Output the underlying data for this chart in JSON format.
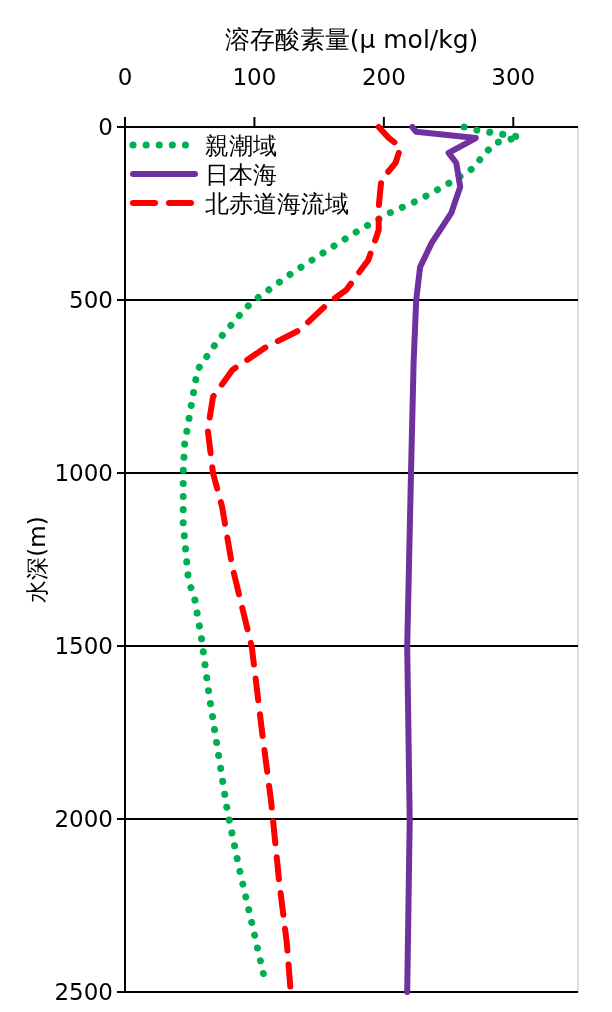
{
  "chart_data": {
    "type": "line",
    "xlabel": "溶存酸素量(μ mol/kg)",
    "ylabel": "水深(m)",
    "xlim": [
      0,
      350
    ],
    "xticks": [
      0,
      100,
      200,
      300
    ],
    "ylim": [
      2500,
      0
    ],
    "yticks": [
      0,
      500,
      1000,
      1500,
      2000,
      2500
    ],
    "grid": "y",
    "legend": "top left",
    "series": [
      {
        "name": "親潮域",
        "color": "#00b050",
        "line_style": "dotted",
        "x": [
          262,
          273,
          305,
          286,
          277,
          269,
          248,
          227,
          204,
          181,
          160,
          129,
          98,
          90,
          72,
          56,
          51,
          46,
          45,
          45,
          49,
          54,
          59,
          65,
          72,
          79,
          88,
          98,
          108
        ],
        "values": [
          0,
          10,
          29,
          46,
          81,
          119,
          168,
          211,
          249,
          298,
          347,
          422,
          506,
          538,
          616,
          702,
          809,
          919,
          1000,
          1145,
          1309,
          1367,
          1477,
          1642,
          1809,
          1974,
          2139,
          2301,
          2465
        ]
      },
      {
        "name": "日本海",
        "color": "#7030a0",
        "line_style": "solid",
        "x": [
          222,
          225,
          271,
          250,
          256,
          259,
          252,
          237,
          228,
          225,
          223,
          221,
          218,
          220,
          218
        ],
        "values": [
          0,
          14,
          32,
          75,
          104,
          173,
          249,
          335,
          405,
          500,
          682,
          1000,
          1503,
          2003,
          2500
        ]
      },
      {
        "name": "北赤道海流域",
        "color": "#ff0000",
        "line_style": "dashed",
        "x": [
          196,
          204,
          213,
          209,
          198,
          196,
          196,
          188,
          171,
          158,
          135,
          109,
          83,
          68,
          64,
          68,
          75,
          83,
          91,
          98,
          106,
          113,
          119,
          125,
          128
        ],
        "values": [
          0,
          32,
          58,
          104,
          153,
          231,
          298,
          384,
          471,
          506,
          587,
          636,
          702,
          780,
          876,
          1000,
          1098,
          1272,
          1396,
          1503,
          1751,
          1954,
          2176,
          2358,
          2500
        ]
      }
    ]
  }
}
